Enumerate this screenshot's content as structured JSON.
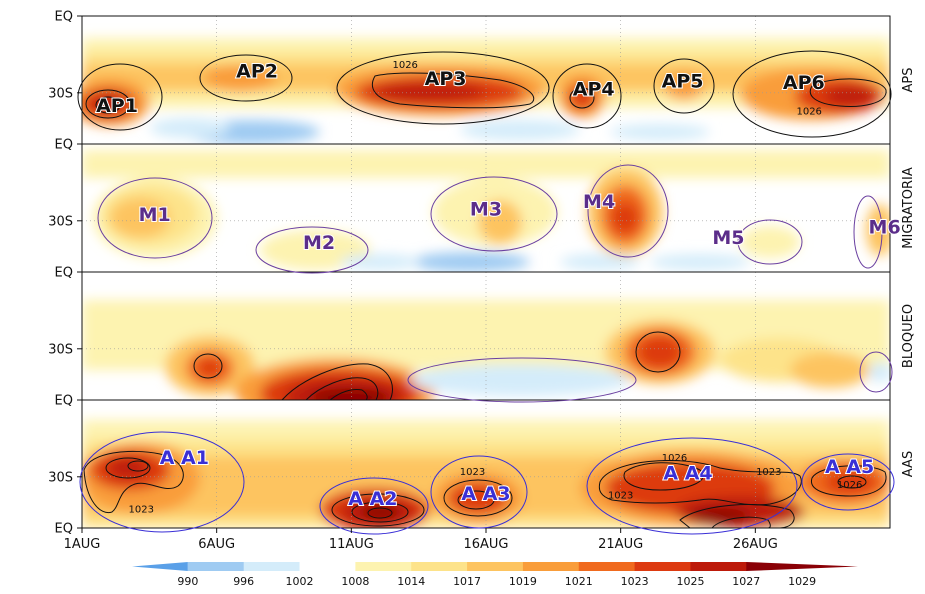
{
  "chart_data": {
    "type": "heatmap",
    "x_ticks": [
      "1AUG",
      "6AUG",
      "11AUG",
      "16AUG",
      "21AUG",
      "26AUG"
    ],
    "x_tick_days": [
      1,
      6,
      11,
      16,
      21,
      26
    ],
    "x_range_days": [
      1,
      31
    ],
    "panel_y_ticks": [
      "EQ",
      "30S",
      "EQ"
    ],
    "colorbar": {
      "levels": [
        "990",
        "996",
        "1002",
        "1008",
        "1014",
        "1017",
        "1019",
        "1021",
        "1023",
        "1025",
        "1027",
        "1029"
      ],
      "colors": [
        "#5aa0e8",
        "#9fcbf2",
        "#d4ecfa",
        "#ffffff",
        "#fdf3b0",
        "#fde38a",
        "#fdc460",
        "#f99d3a",
        "#f06a1e",
        "#dd3a10",
        "#bd1a0a",
        "#8a0006"
      ]
    },
    "panels": [
      {
        "name": "APS",
        "systems": [
          {
            "label": "AP1",
            "day": 2.3,
            "lat": 0.25
          },
          {
            "label": "AP2",
            "day": 7.5,
            "lat": 0.52
          },
          {
            "label": "AP3",
            "day": 14.5,
            "lat": 0.46
          },
          {
            "label": "AP4",
            "day": 20.0,
            "lat": 0.38
          },
          {
            "label": "AP5",
            "day": 23.3,
            "lat": 0.44
          },
          {
            "label": "AP6",
            "day": 27.8,
            "lat": 0.43
          }
        ],
        "contour_labels": [
          {
            "text": "1026",
            "day": 13.0,
            "lat": 0.6
          },
          {
            "text": "1026",
            "day": 28.0,
            "lat": 0.24
          }
        ]
      },
      {
        "name": "MIGRATORIA",
        "systems": [
          {
            "label": "M1",
            "day": 3.7,
            "lat": 0.4
          },
          {
            "label": "M2",
            "day": 9.8,
            "lat": 0.18
          },
          {
            "label": "M3",
            "day": 16.0,
            "lat": 0.44
          },
          {
            "label": "M4",
            "day": 20.2,
            "lat": 0.5
          },
          {
            "label": "M5",
            "day": 25.0,
            "lat": 0.22
          },
          {
            "label": "M6",
            "day": 30.8,
            "lat": 0.3
          }
        ],
        "contour_labels": []
      },
      {
        "name": "BLOQUEO",
        "systems": [],
        "contour_labels": []
      },
      {
        "name": "AAS",
        "systems": [
          {
            "label": "A A1",
            "day": 4.8,
            "lat": 0.5
          },
          {
            "label": "A A2",
            "day": 11.8,
            "lat": 0.18
          },
          {
            "label": "A A3",
            "day": 16.0,
            "lat": 0.22
          },
          {
            "label": "A A4",
            "day": 23.5,
            "lat": 0.38
          },
          {
            "label": "A A5",
            "day": 29.5,
            "lat": 0.43
          }
        ],
        "contour_labels": [
          {
            "text": "1023",
            "day": 3.2,
            "lat": 0.13
          },
          {
            "text": "1023",
            "day": 15.5,
            "lat": 0.42
          },
          {
            "text": "1026",
            "day": 23.0,
            "lat": 0.53
          },
          {
            "text": "1023",
            "day": 21.0,
            "lat": 0.24
          },
          {
            "text": "1023",
            "day": 26.5,
            "lat": 0.42
          },
          {
            "text": "1026",
            "day": 29.5,
            "lat": 0.32
          }
        ]
      }
    ],
    "label_colors": {
      "APS": "#111111",
      "MIGRATORIA": "#5b2d8a",
      "BLOQUEO": "#5b2d8a",
      "AAS": "#3a2fd6"
    },
    "ellipse_colors": {
      "APS": "#111111",
      "MIGRATORIA": "#6a3fa0",
      "BLOQUEO": "#6a3fa0",
      "AAS": "#3a2fd6"
    }
  }
}
